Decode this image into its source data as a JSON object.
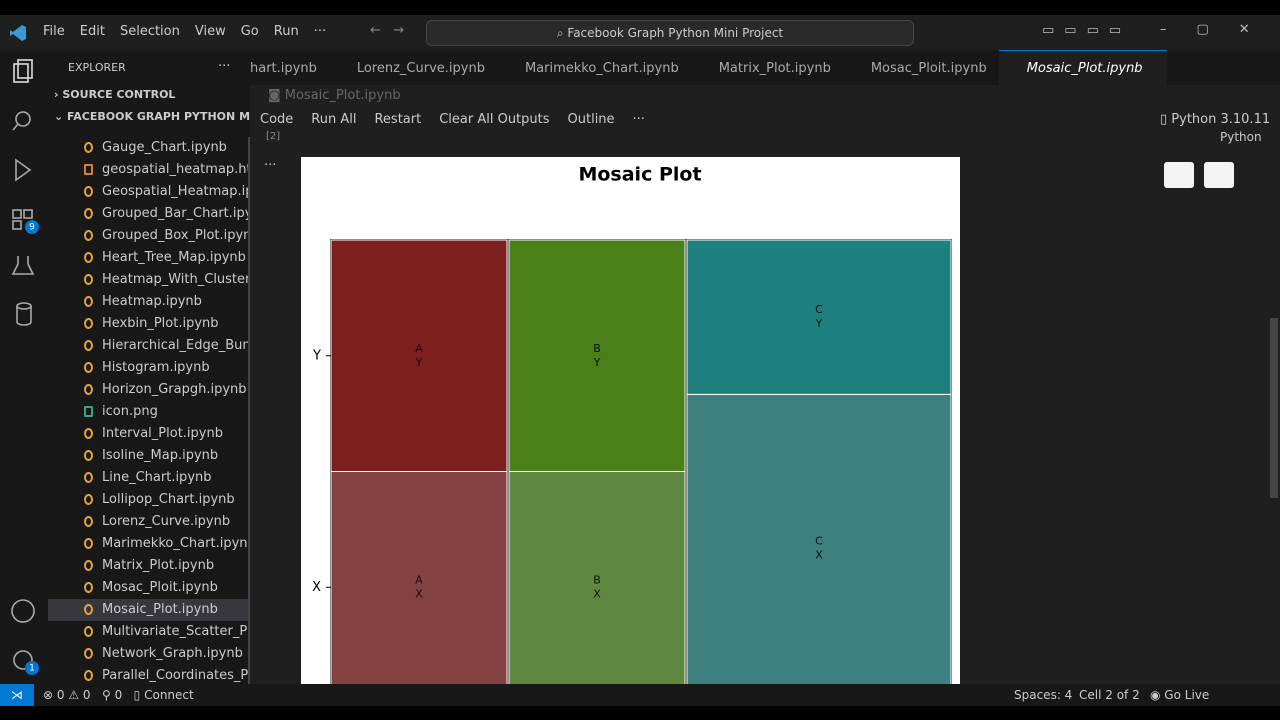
{
  "title_bar": {
    "menu": [
      "File",
      "Edit",
      "Selection",
      "View",
      "Go",
      "Run",
      "···"
    ],
    "search": "Facebook Graph Python Mini Project"
  },
  "activity_bar": {
    "badges": [
      "9",
      "1"
    ]
  },
  "sidebar": {
    "header": "EXPLORER",
    "header_more": "···",
    "sections": [
      "SOURCE CONTROL",
      "FACEBOOK GRAPH PYTHON MI..."
    ],
    "files": [
      "Gauge_Chart.ipynb",
      "geospatial_heatmap.html",
      "Geospatial_Heatmap.ip...",
      "Grouped_Bar_Chart.ipy...",
      "Grouped_Box_Plot.ipynb",
      "Heart_Tree_Map.ipynb",
      "Heatmap_With_Clusteri...",
      "Heatmap.ipynb",
      "Hexbin_Plot.ipynb",
      "Hierarchical_Edge_Bun...",
      "Histogram.ipynb",
      "Horizon_Grapgh.ipynb",
      "icon.png",
      "Interval_Plot.ipynb",
      "Isoline_Map.ipynb",
      "Line_Chart.ipynb",
      "Lollipop_Chart.ipynb",
      "Lorenz_Curve.ipynb",
      "Marimekko_Chart.ipynb",
      "Matrix_Plot.ipynb",
      "Mosac_Ploit.ipynb",
      "Mosaic_Plot.ipynb",
      "Multivariate_Scatter_Pl...",
      "Network_Graph.ipynb",
      "Parallel_Coordinates_Pl..."
    ]
  },
  "tabs": [
    "hart.ipynb",
    "Lorenz_Curve.ipynb",
    "Marimekko_Chart.ipynb",
    "Matrix_Plot.ipynb",
    "Mosac_Ploit.ipynb",
    "Mosaic_Plot.ipynb"
  ],
  "breadcrumb": "Mosaic_Plot.ipynb",
  "toolbar": {
    "items": [
      "Code",
      "Run All",
      "Restart",
      "Clear All Outputs",
      "Outline",
      "···"
    ],
    "kernel": "Python 3.10.11",
    "language": "Python",
    "cell_index": "[2]",
    "cell_more": "···"
  },
  "status_bar": {
    "errors": "0",
    "warnings": "0",
    "ports": "0",
    "connect": "Connect",
    "spaces": "Spaces: 4",
    "cell": "Cell 2 of 2",
    "live": "Go Live"
  },
  "chart_data": {
    "type": "mosaic",
    "title": "Mosaic Plot",
    "categories": [
      "A",
      "B",
      "C"
    ],
    "series": [
      {
        "name": "X",
        "values": [
          1,
          1,
          2
        ],
        "colors": [
          "#834141",
          "#5e8740",
          "#3e8080"
        ]
      },
      {
        "name": "Y",
        "values": [
          1,
          1,
          1
        ],
        "colors": [
          "#7e1f1f",
          "#4b7f1a",
          "#1e7f7f"
        ]
      }
    ]
  }
}
